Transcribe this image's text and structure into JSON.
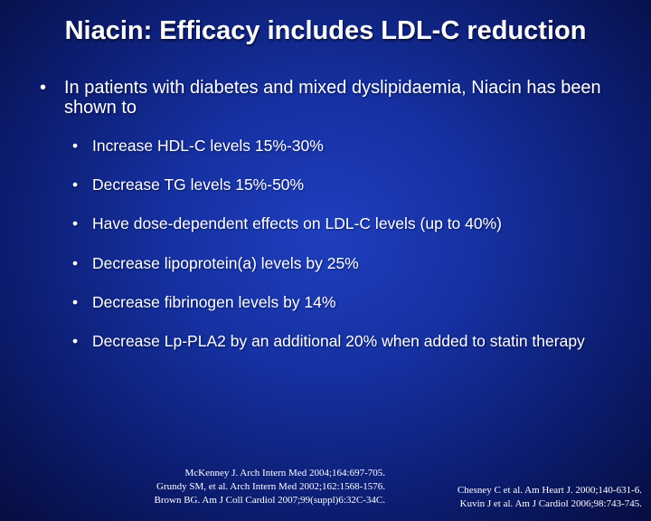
{
  "slide": {
    "title": "Niacin: Efficacy includes LDL-C reduction",
    "bullet_symbol": "•",
    "main_bullet": "In patients with diabetes and mixed dyslipidaemia,  Niacin has been shown to",
    "sub_bullets": [
      "Increase HDL-C levels 15%-30%",
      "Decrease TG levels 15%-50%",
      "Have dose-dependent effects on LDL-C levels (up to 40%)",
      "Decrease lipoprotein(a) levels by 25%",
      "Decrease fibrinogen levels by 14%",
      "Decrease Lp-PLA2 by an additional 20% when added to statin therapy"
    ],
    "references_left": [
      "McKenney J. Arch Intern Med 2004;164:697-705.",
      "Grundy SM, et al. Arch Intern Med 2002;162:1568-1576.",
      "Brown BG. Am J Coll Cardiol 2007;99(suppl)6:32C-34C."
    ],
    "references_right": [
      "Chesney C et al. Am Heart J. 2000;140-631-6.",
      "Kuvin J et al. Am J Cardiol 2006;98:743-745."
    ]
  }
}
